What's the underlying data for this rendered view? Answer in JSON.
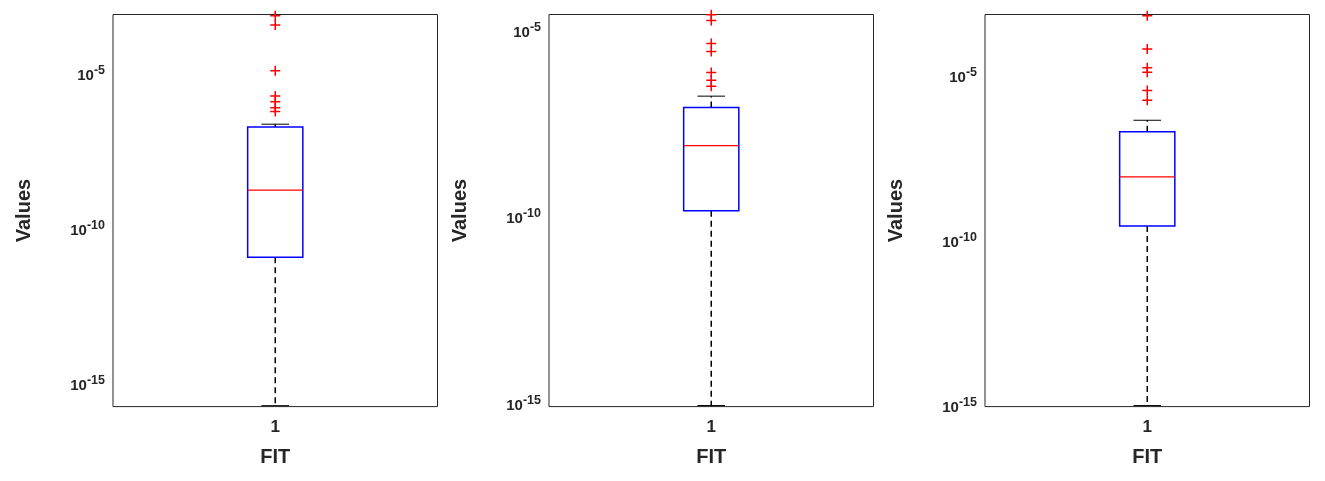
{
  "chart_data": [
    {
      "type": "box",
      "xlabel": "FIT",
      "ylabel": "Values",
      "categories": [
        "1"
      ],
      "log": true,
      "ylim": [
        1.66e-16,
        0.000692
      ],
      "yticks": [
        {
          "value": 1e-15,
          "label": "10$^{-15}$"
        },
        {
          "value": 1e-10,
          "label": "10$^{-10}$"
        },
        {
          "value": 1e-05,
          "label": "10$^{-5}$"
        }
      ],
      "boxes": [
        {
          "low": 1.78e-16,
          "q1": 1.07e-11,
          "median": 1.55e-09,
          "q3": 1.66e-07,
          "high": 2.04e-07,
          "outliers": [
            0.00063,
            0.00032,
            1.07e-05,
            1.66e-06,
            1.07e-06,
            6.9e-07,
            5.2e-07
          ]
        }
      ]
    },
    {
      "type": "box",
      "xlabel": "FIT",
      "ylabel": "Values",
      "categories": [
        "1"
      ],
      "log": true,
      "ylim": [
        7.4e-16,
        2.45e-05
      ],
      "yticks": [
        {
          "value": 1e-15,
          "label": "10$^{-15}$"
        },
        {
          "value": 1e-10,
          "label": "10$^{-10}$"
        },
        {
          "value": 1e-05,
          "label": "10$^{-5}$"
        }
      ],
      "boxes": [
        {
          "low": 7.9e-16,
          "q1": 1.32e-10,
          "median": 7.4e-09,
          "q3": 7.8e-08,
          "high": 1.58e-07,
          "outliers": [
            2.4e-05,
            1.7e-05,
            4.1e-06,
            2.5e-06,
            6.8e-07,
            4.2e-07,
            2.9e-07
          ]
        }
      ]
    },
    {
      "type": "box",
      "xlabel": "FIT",
      "ylabel": "Values",
      "categories": [
        "1"
      ],
      "log": true,
      "ylim": [
        8.1e-16,
        0.00065
      ],
      "yticks": [
        {
          "value": 1e-15,
          "label": "10$^{-15}$"
        },
        {
          "value": 1e-10,
          "label": "10$^{-10}$"
        },
        {
          "value": 1e-05,
          "label": "10$^{-5}$"
        }
      ],
      "boxes": [
        {
          "low": 8.7e-16,
          "q1": 2.45e-10,
          "median": 7.6e-09,
          "q3": 1.78e-07,
          "high": 4e-07,
          "outliers": [
            0.0006,
            5.8e-05,
            1.58e-05,
            1.15e-05,
            3.2e-06,
            1.62e-06
          ]
        }
      ]
    }
  ]
}
